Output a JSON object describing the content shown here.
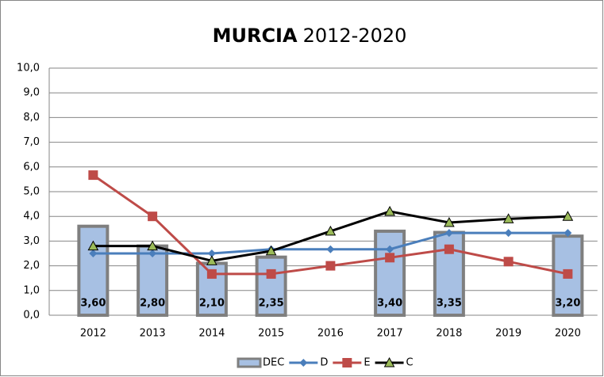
{
  "chart_data": {
    "type": "bar",
    "title": "MURCIA",
    "subtitle": "2012-2020",
    "categories": [
      "2012",
      "2013",
      "2014",
      "2015",
      "2016",
      "2017",
      "2018",
      "2019",
      "2020"
    ],
    "series": [
      {
        "name": "DEC",
        "type": "bar",
        "color": "#a7c0e3",
        "edge": "#7f7f7f",
        "values": [
          3.6,
          2.8,
          2.1,
          2.35,
          null,
          3.4,
          3.35,
          null,
          3.2
        ],
        "value_labels": [
          "3,60",
          "2,80",
          "2,10",
          "2,35",
          null,
          "3,40",
          "3,35",
          null,
          "3,20"
        ]
      },
      {
        "name": "D",
        "type": "line",
        "marker": "diamond",
        "color": "#4a7ebb",
        "values": [
          2.5,
          2.5,
          2.5,
          2.67,
          2.67,
          2.67,
          3.33,
          3.33,
          3.33
        ]
      },
      {
        "name": "E",
        "type": "line",
        "marker": "square",
        "color": "#be4b48",
        "values": [
          5.67,
          4.0,
          1.67,
          1.67,
          2.0,
          2.33,
          2.67,
          2.17,
          1.67
        ]
      },
      {
        "name": "C",
        "type": "line",
        "marker": "triangle",
        "color": "#000000",
        "marker_color": "#9bbb59",
        "values": [
          2.8,
          2.8,
          2.2,
          2.6,
          3.4,
          4.2,
          3.75,
          3.9,
          4.0
        ]
      }
    ],
    "ylim": [
      0,
      10
    ],
    "yticks": [
      {
        "value": 0,
        "label": "0,0"
      },
      {
        "value": 1,
        "label": "1,0"
      },
      {
        "value": 2,
        "label": "2,0"
      },
      {
        "value": 3,
        "label": "3,0"
      },
      {
        "value": 4,
        "label": "4,0"
      },
      {
        "value": 5,
        "label": "5,0"
      },
      {
        "value": 6,
        "label": "6,0"
      },
      {
        "value": 7,
        "label": "7,0"
      },
      {
        "value": 8,
        "label": "8,0"
      },
      {
        "value": 9,
        "label": "9,0"
      },
      {
        "value": 10,
        "label": "10,0"
      }
    ],
    "grid": true,
    "legend": "bottom"
  }
}
